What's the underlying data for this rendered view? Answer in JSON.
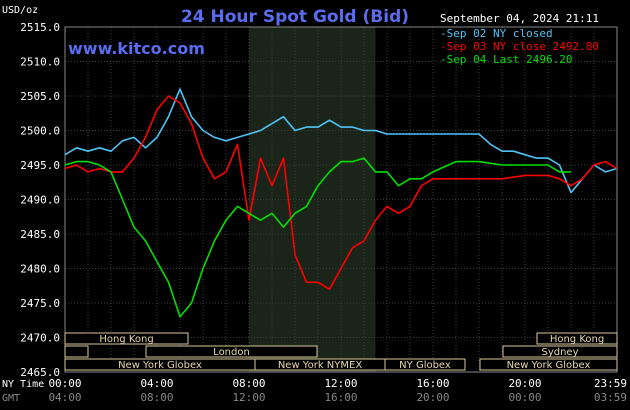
{
  "header": {
    "unit": "USD/oz",
    "title": "24 Hour Spot Gold (Bid)",
    "watermark": "www.kitco.com",
    "date": "September 04, 2024 21:11"
  },
  "chart_data": {
    "type": "line",
    "title": "24 Hour Spot Gold (Bid)",
    "ylabel": "USD/oz",
    "ylim": [
      2465,
      2515
    ],
    "yticks": [
      "2515.0",
      "2510.0",
      "2505.0",
      "2500.0",
      "2495.0",
      "2490.0",
      "2485.0",
      "2480.0",
      "2475.0",
      "2470.0",
      "2465.0"
    ],
    "xlim": [
      0,
      24
    ],
    "xticks_ny": [
      "00:00",
      "04:00",
      "08:00",
      "12:00",
      "16:00",
      "20:00",
      "23:59"
    ],
    "xticks_gmt": [
      "04:00",
      "08:00",
      "12:00",
      "16:00",
      "20:00",
      "00:00",
      "03:59"
    ],
    "x_axis_labels": {
      "ny": "NY Time",
      "gmt": "GMT"
    },
    "legend": {
      "placement": "top-right",
      "entries": [
        "Sep 02 NY closed",
        "Sep 03 NY close 2492.80",
        "Sep 04 Last 2496.20"
      ]
    },
    "highlight_x_range": [
      8,
      13.5
    ],
    "grid": true,
    "series": [
      {
        "name": "Sep 02 NY closed",
        "color": "#4fc3f7",
        "x": [
          0,
          0.5,
          1,
          1.5,
          2,
          2.5,
          3,
          3.5,
          4,
          4.5,
          5,
          5.5,
          6,
          6.5,
          7,
          7.5,
          8,
          8.5,
          9,
          9.5,
          10,
          10.5,
          11,
          11.5,
          12,
          12.5,
          13,
          13.5,
          14,
          15,
          16,
          17,
          18,
          18.5,
          19,
          19.5,
          20,
          20.5,
          21,
          21.5,
          22,
          22.5,
          23,
          23.5,
          23.99
        ],
        "y": [
          2496.5,
          2497.5,
          2497,
          2497.5,
          2497,
          2498.5,
          2499,
          2497.5,
          2499,
          2502,
          2506,
          2502,
          2500,
          2499,
          2498.5,
          2499,
          2499.5,
          2500,
          2501,
          2502,
          2500,
          2500.5,
          2500.5,
          2501.5,
          2500.5,
          2500.5,
          2500,
          2500,
          2499.5,
          2499.5,
          2499.5,
          2499.5,
          2499.5,
          2498,
          2497,
          2497,
          2496.5,
          2496,
          2496,
          2495,
          2491,
          2493,
          2495,
          2494,
          2494.5
        ]
      },
      {
        "name": "Sep 03 NY close 2492.80",
        "color": "#ff0000",
        "x": [
          0,
          0.5,
          1,
          1.5,
          2,
          2.5,
          3,
          3.5,
          4,
          4.5,
          5,
          5.5,
          6,
          6.5,
          7,
          7.5,
          8,
          8.5,
          9,
          9.5,
          10,
          10.5,
          11,
          11.5,
          12,
          12.5,
          13,
          13.5,
          14,
          14.5,
          15,
          15.5,
          16,
          16.5,
          17,
          18,
          19,
          20,
          21,
          21.5,
          22,
          22.5,
          23,
          23.5,
          23.99
        ],
        "y": [
          2494.5,
          2495,
          2494,
          2494.5,
          2494,
          2494,
          2496,
          2499,
          2503,
          2505,
          2504,
          2501,
          2496,
          2493,
          2494,
          2498,
          2487,
          2496,
          2492,
          2496,
          2482,
          2478,
          2478,
          2477,
          2480,
          2483,
          2484,
          2487,
          2489,
          2488,
          2489,
          2492,
          2493,
          2493,
          2493,
          2493,
          2493,
          2493.5,
          2493.5,
          2493,
          2492,
          2493,
          2495,
          2495.5,
          2494.5
        ]
      },
      {
        "name": "Sep 04 Last 2496.20",
        "color": "#00e000",
        "x": [
          0,
          0.5,
          1,
          1.5,
          2,
          2.5,
          3,
          3.5,
          4,
          4.5,
          5,
          5.5,
          6,
          6.5,
          7,
          7.5,
          8,
          8.5,
          9,
          9.5,
          10,
          10.5,
          11,
          11.5,
          12,
          12.5,
          13,
          13.5,
          14,
          14.5,
          15,
          15.5,
          16,
          17,
          18,
          19,
          20,
          20.5,
          21,
          21.5,
          22
        ],
        "y": [
          2495,
          2495.5,
          2495.5,
          2495,
          2494,
          2490,
          2486,
          2484,
          2481,
          2478,
          2473,
          2475,
          2480,
          2484,
          2487,
          2489,
          2488,
          2487,
          2488,
          2486,
          2488,
          2489,
          2492,
          2494,
          2495.5,
          2495.5,
          2496,
          2494,
          2494,
          2492,
          2493,
          2493,
          2494,
          2495.5,
          2495.5,
          2495,
          2495,
          2495,
          2495,
          2494,
          2494
        ]
      }
    ]
  },
  "sessions": {
    "row1": [
      {
        "label": "Hong Kong"
      },
      {
        "label": "Hong Kong"
      }
    ],
    "row2": [
      {
        "label": "London"
      },
      {
        "label": "Sydney"
      }
    ],
    "row3": [
      {
        "label": "New York Globex"
      },
      {
        "label": "New York NYMEX"
      },
      {
        "label": "NY Globex"
      },
      {
        "label": "New York Globex"
      }
    ]
  }
}
